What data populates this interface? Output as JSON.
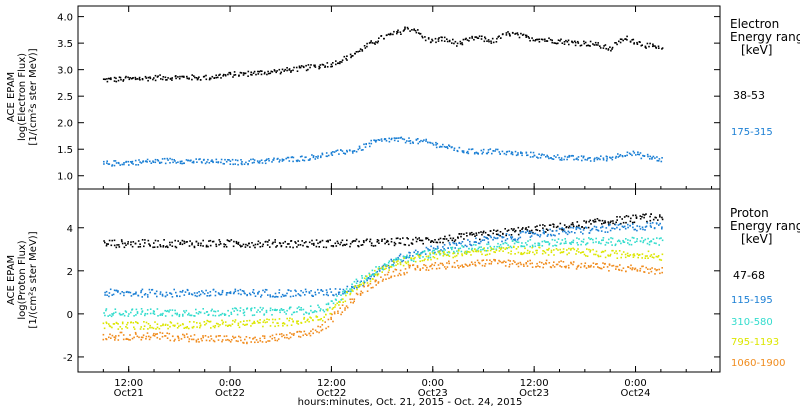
{
  "chart_data": [
    {
      "type": "scatter",
      "title": "",
      "xlabel": "hours:minutes, Oct. 21, 2015 - Oct. 24, 2015",
      "ylabel_lines": [
        "ACE EPAM",
        "log(Electron Flux)",
        "[1/(cm²s ster MeV)]"
      ],
      "ylim": [
        0.75,
        4.2
      ],
      "yticks": [
        1.0,
        1.5,
        2.0,
        2.5,
        3.0,
        3.5,
        4.0
      ],
      "ytick_labels": [
        "1.0",
        "1.5",
        "2.0",
        "2.5",
        "3.0",
        "3.5",
        "4.0"
      ],
      "xlim_hours": [
        -3,
        73
      ],
      "x_ticks": [
        {
          "h": 3,
          "label": "12:00",
          "sub": "Oct21"
        },
        {
          "h": 15,
          "label": "0:00",
          "sub": "Oct22"
        },
        {
          "h": 27,
          "label": "12:00",
          "sub": "Oct22"
        },
        {
          "h": 39,
          "label": "0:00",
          "sub": "Oct23"
        },
        {
          "h": 51,
          "label": "12:00",
          "sub": "Oct23"
        },
        {
          "h": 63,
          "label": "0:00",
          "sub": "Oct24"
        }
      ],
      "legend": {
        "title_lines": [
          "Electron",
          "Energy ranges",
          "[keV]"
        ],
        "entries": [
          {
            "name": "38-53",
            "color": "#000000"
          },
          {
            "name": "175-315",
            "color": "#1b7fd4"
          }
        ]
      },
      "series": [
        {
          "name": "38-53",
          "color": "#000000",
          "x": [
            0,
            3,
            6,
            9,
            12,
            15,
            18,
            21,
            24,
            27,
            29,
            31,
            33,
            35,
            36,
            37,
            38,
            39,
            40,
            42,
            44,
            46,
            48,
            50,
            52,
            54,
            56,
            58,
            60,
            61,
            62,
            64,
            66
          ],
          "y": [
            2.82,
            2.84,
            2.86,
            2.87,
            2.86,
            2.92,
            2.95,
            2.99,
            3.05,
            3.12,
            3.25,
            3.45,
            3.62,
            3.72,
            3.8,
            3.75,
            3.6,
            3.55,
            3.6,
            3.5,
            3.62,
            3.55,
            3.7,
            3.62,
            3.58,
            3.55,
            3.52,
            3.5,
            3.4,
            3.55,
            3.6,
            3.48,
            3.4
          ]
        },
        {
          "name": "175-315",
          "color": "#1b7fd4",
          "x": [
            0,
            4,
            8,
            12,
            16,
            20,
            24,
            27,
            30,
            32,
            34,
            36,
            38,
            40,
            42,
            44,
            46,
            48,
            50,
            52,
            54,
            56,
            58,
            60,
            62,
            64,
            66
          ],
          "y": [
            1.24,
            1.27,
            1.3,
            1.28,
            1.27,
            1.3,
            1.35,
            1.43,
            1.5,
            1.65,
            1.7,
            1.68,
            1.65,
            1.58,
            1.5,
            1.46,
            1.48,
            1.44,
            1.42,
            1.38,
            1.36,
            1.34,
            1.33,
            1.35,
            1.45,
            1.38,
            1.32
          ]
        }
      ]
    },
    {
      "type": "scatter",
      "title": "",
      "xlabel": "hours:minutes, Oct. 21, 2015 - Oct. 24, 2015",
      "ylabel_lines": [
        "ACE EPAM",
        "log(Proton Flux)",
        "[1/(cm²s ster MeV)]"
      ],
      "ylim": [
        -2.7,
        5.8
      ],
      "yticks": [
        -2,
        0,
        2,
        4
      ],
      "ytick_labels": [
        "-2",
        "0",
        "2",
        "4"
      ],
      "xlim_hours": [
        -3,
        73
      ],
      "legend": {
        "title_lines": [
          "Proton",
          "Energy ranges",
          "[keV]"
        ],
        "entries": [
          {
            "name": "47-68",
            "color": "#000000"
          },
          {
            "name": "115-195",
            "color": "#1b7fd4"
          },
          {
            "name": "310-580",
            "color": "#33dccd"
          },
          {
            "name": "795-1193",
            "color": "#dce600"
          },
          {
            "name": "1060-1900",
            "color": "#f08c1e"
          }
        ]
      },
      "series": [
        {
          "name": "47-68",
          "color": "#000000",
          "x": [
            0,
            6,
            12,
            18,
            24,
            27,
            30,
            33,
            36,
            40,
            44,
            48,
            52,
            56,
            60,
            64,
            66
          ],
          "y": [
            3.3,
            3.3,
            3.3,
            3.3,
            3.3,
            3.3,
            3.32,
            3.35,
            3.4,
            3.5,
            3.65,
            3.85,
            4.0,
            4.15,
            4.35,
            4.5,
            4.5
          ]
        },
        {
          "name": "115-195",
          "color": "#1b7fd4",
          "x": [
            0,
            6,
            12,
            18,
            24,
            27,
            29,
            31,
            33,
            35,
            37,
            40,
            44,
            48,
            52,
            56,
            60,
            64,
            66
          ],
          "y": [
            1.0,
            1.0,
            1.0,
            1.0,
            1.0,
            1.02,
            1.2,
            1.6,
            2.2,
            2.6,
            2.9,
            3.1,
            3.4,
            3.6,
            3.8,
            3.9,
            4.0,
            4.1,
            4.15
          ]
        },
        {
          "name": "310-580",
          "color": "#33dccd",
          "x": [
            0,
            6,
            12,
            18,
            24,
            26,
            28,
            30,
            32,
            34,
            36,
            38,
            40,
            44,
            48,
            52,
            56,
            60,
            64,
            66
          ],
          "y": [
            0.1,
            0.1,
            0.1,
            0.15,
            0.2,
            0.3,
            0.8,
            1.5,
            2.0,
            2.4,
            2.6,
            2.8,
            2.9,
            3.1,
            3.25,
            3.35,
            3.4,
            3.4,
            3.4,
            3.4
          ]
        },
        {
          "name": "795-1193",
          "color": "#dce600",
          "x": [
            0,
            6,
            12,
            18,
            24,
            26,
            28,
            30,
            32,
            34,
            36,
            38,
            40,
            44,
            48,
            52,
            56,
            60,
            64,
            66
          ],
          "y": [
            -0.5,
            -0.5,
            -0.45,
            -0.4,
            -0.3,
            -0.1,
            0.6,
            1.3,
            1.9,
            2.3,
            2.5,
            2.7,
            2.8,
            2.9,
            3.0,
            2.95,
            2.9,
            2.8,
            2.8,
            2.7
          ]
        },
        {
          "name": "1060-1900",
          "color": "#f08c1e",
          "x": [
            0,
            6,
            12,
            18,
            24,
            26,
            28,
            30,
            32,
            34,
            36,
            38,
            40,
            44,
            48,
            52,
            56,
            60,
            64,
            66
          ],
          "y": [
            -1.0,
            -1.0,
            -1.1,
            -1.2,
            -0.9,
            -0.6,
            0.2,
            0.9,
            1.5,
            1.9,
            2.1,
            2.2,
            2.3,
            2.4,
            2.4,
            2.35,
            2.3,
            2.2,
            2.1,
            2.0
          ]
        }
      ]
    }
  ]
}
